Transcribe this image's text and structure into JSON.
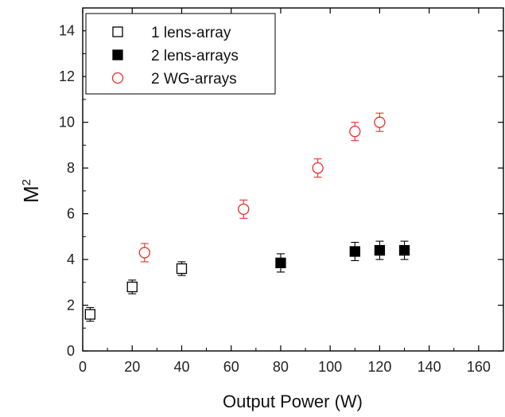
{
  "chart_data": {
    "type": "scatter",
    "title": "",
    "xlabel": "Output Power (W)",
    "ylabel": {
      "base": "M",
      "sup": "2"
    },
    "xlim": [
      0,
      170
    ],
    "ylim": [
      0,
      15
    ],
    "xticks": [
      0,
      20,
      40,
      60,
      80,
      100,
      120,
      140,
      160
    ],
    "yticks": [
      0,
      2,
      4,
      6,
      8,
      10,
      12,
      14
    ],
    "grid": false,
    "legend_position": "top-left",
    "series": [
      {
        "name": "1 lens-array",
        "marker": "square-open",
        "color": "#000000",
        "points": [
          {
            "x": 3,
            "y": 1.6,
            "err": 0.3
          },
          {
            "x": 20,
            "y": 2.8,
            "err": 0.3
          },
          {
            "x": 40,
            "y": 3.6,
            "err": 0.3
          }
        ]
      },
      {
        "name": "2 lens-arrays",
        "marker": "square-filled",
        "color": "#000000",
        "points": [
          {
            "x": 80,
            "y": 3.85,
            "err": 0.4
          },
          {
            "x": 110,
            "y": 4.35,
            "err": 0.4
          },
          {
            "x": 120,
            "y": 4.4,
            "err": 0.4
          },
          {
            "x": 130,
            "y": 4.4,
            "err": 0.4
          }
        ]
      },
      {
        "name": "2 WG-arrays",
        "marker": "circle-open",
        "color": "#e8302a",
        "points": [
          {
            "x": 25,
            "y": 4.3,
            "err": 0.4
          },
          {
            "x": 65,
            "y": 6.2,
            "err": 0.4
          },
          {
            "x": 95,
            "y": 8.0,
            "err": 0.4
          },
          {
            "x": 110,
            "y": 9.6,
            "err": 0.4
          },
          {
            "x": 120,
            "y": 10.0,
            "err": 0.4
          }
        ]
      }
    ]
  }
}
